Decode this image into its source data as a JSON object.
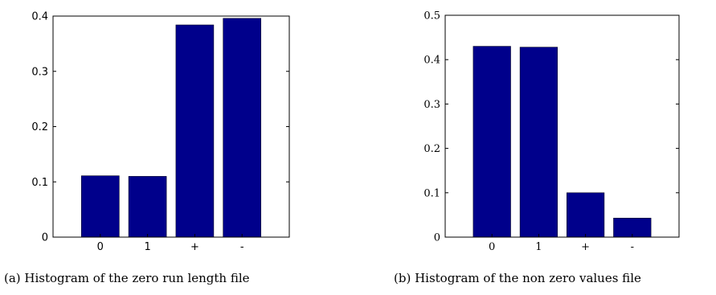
{
  "chart_data": [
    {
      "type": "bar",
      "categories": [
        "0",
        "1",
        "+",
        "-"
      ],
      "values": [
        0.111,
        0.11,
        0.384,
        0.396
      ],
      "ylim": [
        0,
        0.4
      ],
      "yticks": [
        "0",
        "0.1",
        "0.2",
        "0.3",
        "0.4"
      ],
      "grid": false,
      "bar_color": "#00008b",
      "caption": "(a) Histogram of the zero run length file"
    },
    {
      "type": "bar",
      "categories": [
        "0",
        "1",
        "+",
        "-"
      ],
      "values": [
        0.43,
        0.428,
        0.1,
        0.043
      ],
      "ylim": [
        0,
        0.5
      ],
      "yticks": [
        "0",
        "0.1",
        "0.2",
        "0.3",
        "0.4",
        "0.5"
      ],
      "grid": false,
      "bar_color": "#00008b",
      "caption": "(b) Histogram of the non zero values file"
    }
  ]
}
